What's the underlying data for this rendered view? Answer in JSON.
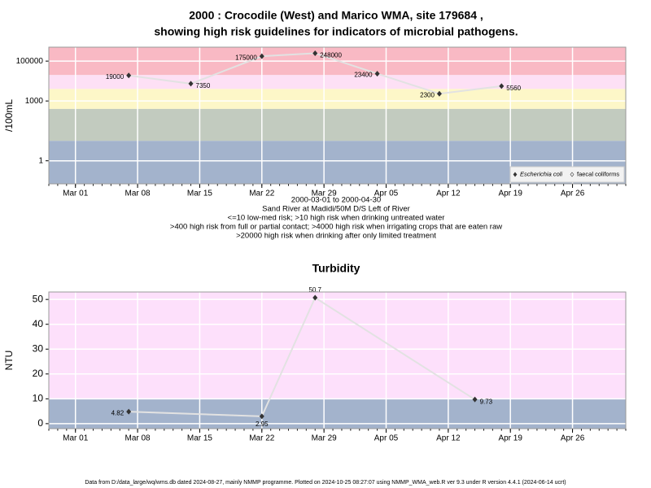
{
  "chart_data": [
    {
      "type": "line",
      "title": [
        "2000 : Crocodile (West) and Marico WMA, site 179684 ,",
        "showing high risk guidelines for indicators of microbial pathogens."
      ],
      "y_label": "/100mL",
      "log_y": true,
      "x": [
        "2000-03-07",
        "2000-03-14",
        "2000-03-22",
        "2000-03-28",
        "2000-04-04",
        "2000-04-11",
        "2000-04-18"
      ],
      "series": [
        {
          "name": "Escherichia coli",
          "color": "#333333",
          "values": [
            19000,
            7350,
            175000,
            248000,
            23400,
            2300,
            5560
          ]
        },
        {
          "name": "faecal coliforms",
          "color": "#333333",
          "values": [
            null,
            null,
            null,
            null,
            null,
            null,
            null
          ]
        }
      ],
      "xlim": [
        "2000-02-27",
        "2000-05-02"
      ],
      "xticks": [
        {
          "value": "2000-03-01",
          "label": "Mar 01"
        },
        {
          "value": "2000-03-08",
          "label": "Mar 08"
        },
        {
          "value": "2000-03-15",
          "label": "Mar 15"
        },
        {
          "value": "2000-03-22",
          "label": "Mar 22"
        },
        {
          "value": "2000-03-29",
          "label": "Mar 29"
        },
        {
          "value": "2000-04-05",
          "label": "Apr 05"
        },
        {
          "value": "2000-04-12",
          "label": "Apr 12"
        },
        {
          "value": "2000-04-19",
          "label": "Apr 19"
        },
        {
          "value": "2000-04-26",
          "label": "Apr 26"
        }
      ],
      "ylim": [
        0.07,
        500000
      ],
      "yticks": [
        1,
        1000,
        100000
      ],
      "grid": true,
      "legend": "bottom-right",
      "bands": [
        {
          "from": 20000,
          "to": 500000,
          "color": "#f9b9c4"
        },
        {
          "from": 4000,
          "to": 20000,
          "color": "#fde0f5"
        },
        {
          "from": 400,
          "to": 4000,
          "color": "#fdf7c8"
        },
        {
          "from": 10,
          "to": 400,
          "color": "#c2cbbf"
        },
        {
          "from": 0.07,
          "to": 10,
          "color": "#a3b3cc"
        }
      ],
      "notes": [
        "2000-03-01 to 2000-04-30",
        "Sand River at Madidi/50M D/S Left of River",
        "<=10 low-med risk; >10 high risk when drinking untreated water",
        ">400 high risk from full or partial contact; >4000 high risk when irrigating crops that are eaten raw",
        ">20000 high risk when drinking after only limited treatment"
      ]
    },
    {
      "type": "line",
      "title": [
        "Turbidity"
      ],
      "y_label": "NTU",
      "log_y": false,
      "x": [
        "2000-03-07",
        "2000-03-22",
        "2000-03-28",
        "2000-04-15"
      ],
      "series": [
        {
          "name": "Turbidity",
          "color": "#333333",
          "values": [
            4.82,
            2.95,
            50.7,
            9.73
          ]
        }
      ],
      "xlim": [
        "2000-02-27",
        "2000-05-02"
      ],
      "xticks": [
        {
          "value": "2000-03-01",
          "label": "Mar 01"
        },
        {
          "value": "2000-03-08",
          "label": "Mar 08"
        },
        {
          "value": "2000-03-15",
          "label": "Mar 15"
        },
        {
          "value": "2000-03-22",
          "label": "Mar 22"
        },
        {
          "value": "2000-03-29",
          "label": "Mar 29"
        },
        {
          "value": "2000-04-05",
          "label": "Apr 05"
        },
        {
          "value": "2000-04-12",
          "label": "Apr 12"
        },
        {
          "value": "2000-04-19",
          "label": "Apr 19"
        },
        {
          "value": "2000-04-26",
          "label": "Apr 26"
        }
      ],
      "ylim": [
        -2,
        53
      ],
      "yticks": [
        0,
        10,
        20,
        30,
        40,
        50
      ],
      "grid": true,
      "bands": [
        {
          "from": 10,
          "to": 53,
          "color": "#fde0fb"
        },
        {
          "from": -2,
          "to": 10,
          "color": "#a3b3cc"
        }
      ]
    }
  ],
  "footer": "Data from D:/data_large/wq/wms.db dated 2024-08-27, mainly NMMP programme. Plotted on 2024-10-25 08:27:07 using NMMP_WMA_web.R ver 9.3 under R version 4.4.1 (2024-06-14 ucrt)"
}
